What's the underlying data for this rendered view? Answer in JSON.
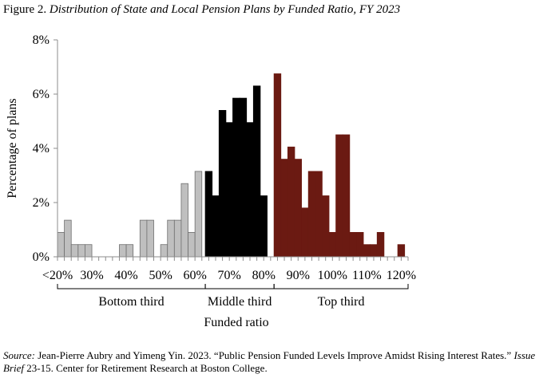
{
  "figure": {
    "label": "Figure 2.",
    "title": "Distribution of State and Local Pension Plans by Funded Ratio, FY 2023"
  },
  "source": {
    "label": "Source:",
    "text_1": " Jean-Pierre Aubry and Yimeng Yin. 2023. “Public Pension Funded Levels Improve Amidst Rising Interest Rates.” ",
    "italic": "Issue Brief",
    "text_2": " 23-15. Center for Retirement Research at Boston College."
  },
  "chart_data": {
    "type": "bar",
    "xlabel": "Funded ratio",
    "ylabel": "Percentage of plans",
    "ylim": [
      0,
      8
    ],
    "y_ticks": [
      0,
      2,
      4,
      6,
      8
    ],
    "y_tick_labels": [
      "0%",
      "2%",
      "4%",
      "6%",
      "8%"
    ],
    "x_tick_labels": [
      "<20%",
      "30%",
      "40%",
      "50%",
      "60%",
      "70%",
      "80%",
      "90%",
      "100%",
      "110%",
      "120%"
    ],
    "bin_width": 1,
    "x_range": [
      20,
      122
    ],
    "grid": false,
    "group_labels": [
      {
        "name": "Bottom third",
        "from": 20,
        "to": 63
      },
      {
        "name": "Middle third",
        "from": 63,
        "to": 83
      },
      {
        "name": "Top third",
        "from": 83,
        "to": 122
      }
    ],
    "series": [
      {
        "group": "Bottom third",
        "color": "#bfbfbf",
        "x": [
          20,
          22,
          24,
          26,
          28,
          38,
          40,
          44,
          46,
          50,
          52,
          54,
          56,
          58,
          60
        ],
        "values": [
          0.9,
          1.35,
          0.45,
          0.45,
          0.45,
          0.45,
          0.45,
          1.35,
          1.35,
          0.45,
          1.35,
          1.35,
          2.7,
          0.9,
          3.15
        ]
      },
      {
        "group": "Middle third",
        "color": "#000000",
        "x": [
          63,
          65,
          67,
          69,
          71,
          73,
          75,
          77,
          79,
          81
        ],
        "values": [
          3.15,
          2.25,
          5.4,
          4.95,
          5.85,
          5.85,
          4.95,
          6.3,
          2.25,
          0
        ]
      },
      {
        "group": "Top third",
        "color": "#6b1a12",
        "x": [
          83,
          85,
          87,
          89,
          91,
          93,
          95,
          97,
          99,
          101,
          103,
          105,
          107,
          109,
          111,
          113,
          115,
          119
        ],
        "values": [
          6.75,
          3.6,
          4.05,
          3.6,
          1.8,
          3.15,
          3.15,
          2.25,
          0.9,
          4.5,
          4.5,
          0.9,
          0.9,
          0.45,
          0.45,
          0.9,
          0,
          0.45
        ]
      }
    ]
  }
}
